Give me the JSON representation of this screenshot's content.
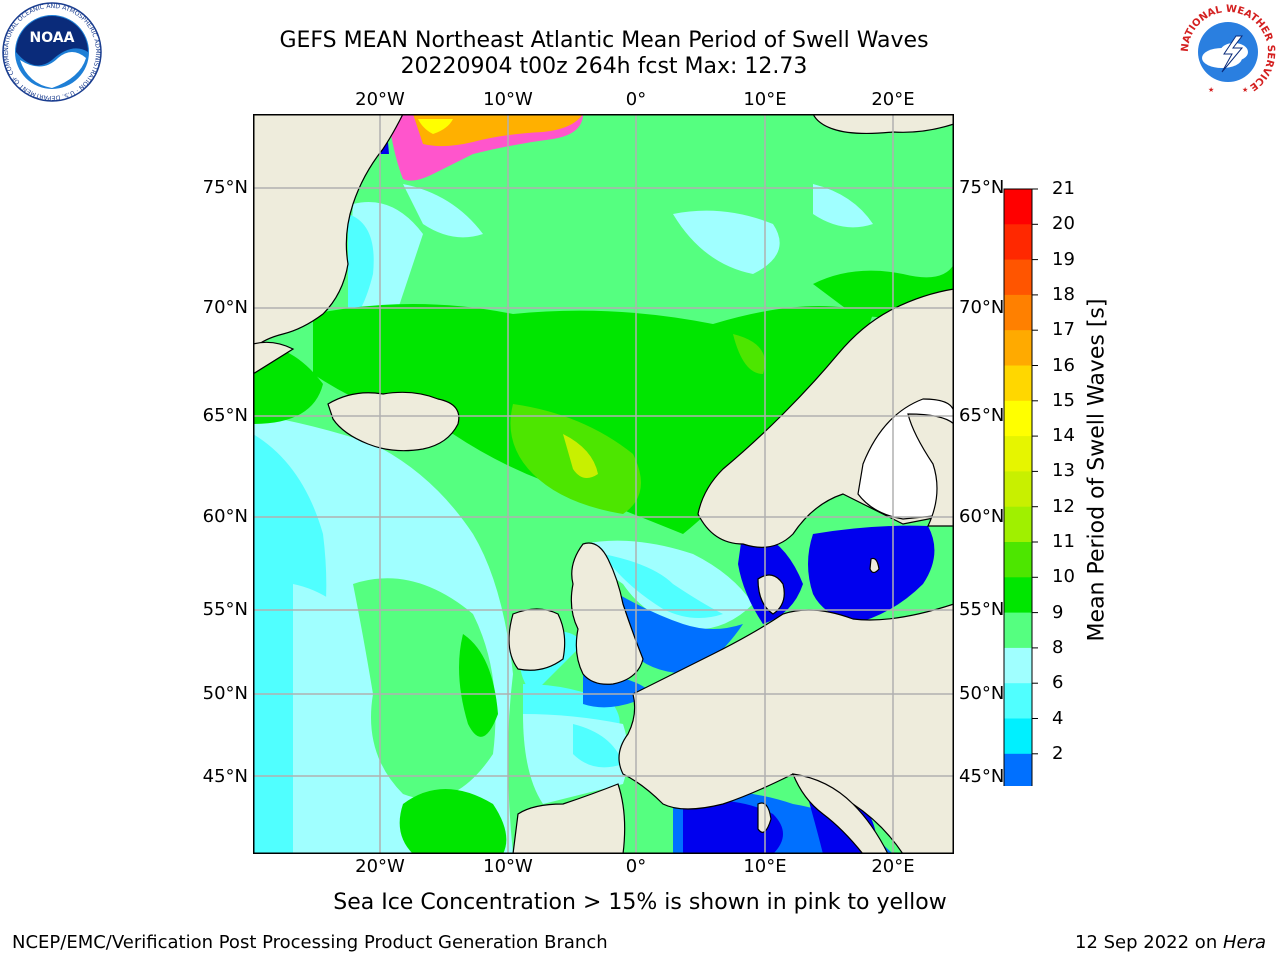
{
  "header": {
    "title_line1": "GEFS MEAN Northeast Atlantic Mean Period of Swell Waves",
    "title_line2": "20220904 t00z 264h fcst   Max: 12.73"
  },
  "map": {
    "lon_labels": [
      "20°W",
      "10°W",
      "0°",
      "10°E",
      "20°E"
    ],
    "lat_labels": [
      "75°N",
      "70°N",
      "65°N",
      "60°N",
      "55°N",
      "50°N",
      "45°N"
    ],
    "colors": {
      "land": "#eeecdc",
      "coast": "#000000",
      "grid": "#b0b0b0",
      "frame": "#000000"
    }
  },
  "colorbar": {
    "label": "Mean Period of Swell Waves [s]",
    "ticks": [
      "21",
      "20",
      "19",
      "18",
      "17",
      "16",
      "15",
      "14",
      "13",
      "12",
      "11",
      "10",
      "9",
      "8",
      "6",
      "4",
      "2"
    ],
    "colors_top_to_bottom": [
      "#ff0000",
      "#ff2800",
      "#ff5500",
      "#ff8000",
      "#ffaa00",
      "#ffd700",
      "#ffff00",
      "#e6f500",
      "#c8f000",
      "#a0f000",
      "#4de600",
      "#00e600",
      "#55ff80",
      "#a0ffff",
      "#50ffff",
      "#00f0ff",
      "#0070ff"
    ],
    "under_color": "#0000ee"
  },
  "ocean_colors": {
    "period_2_4": "#0070ff",
    "period_4_6": "#00f0ff",
    "period_6_8": "#50ffff",
    "period_8_9": "#a0ffff",
    "period_9_10": "#55ff80",
    "period_10_11": "#00e600",
    "period_11_12": "#4de600",
    "period_12_13": "#c8f000",
    "under": "#0000ee",
    "sea_ice_pink": "#ff55cc",
    "sea_ice_orange": "#ffb000",
    "sea_ice_yellow": "#ffff00"
  },
  "footer": {
    "note": "Sea Ice Concentration > 15% is shown in pink to yellow",
    "left": "NCEP/EMC/Verification Post Processing Product Generation Branch",
    "right_prefix": "12 Sep 2022 on ",
    "right_host": "Hera"
  },
  "logos": {
    "noaa_text": "NOAA",
    "noaa_ring": "NATIONAL OCEANIC AND ATMOSPHERIC ADMINISTRATION · U.S. DEPARTMENT OF COMMERCE",
    "nws_ring": "NATIONAL WEATHER SERVICE"
  }
}
